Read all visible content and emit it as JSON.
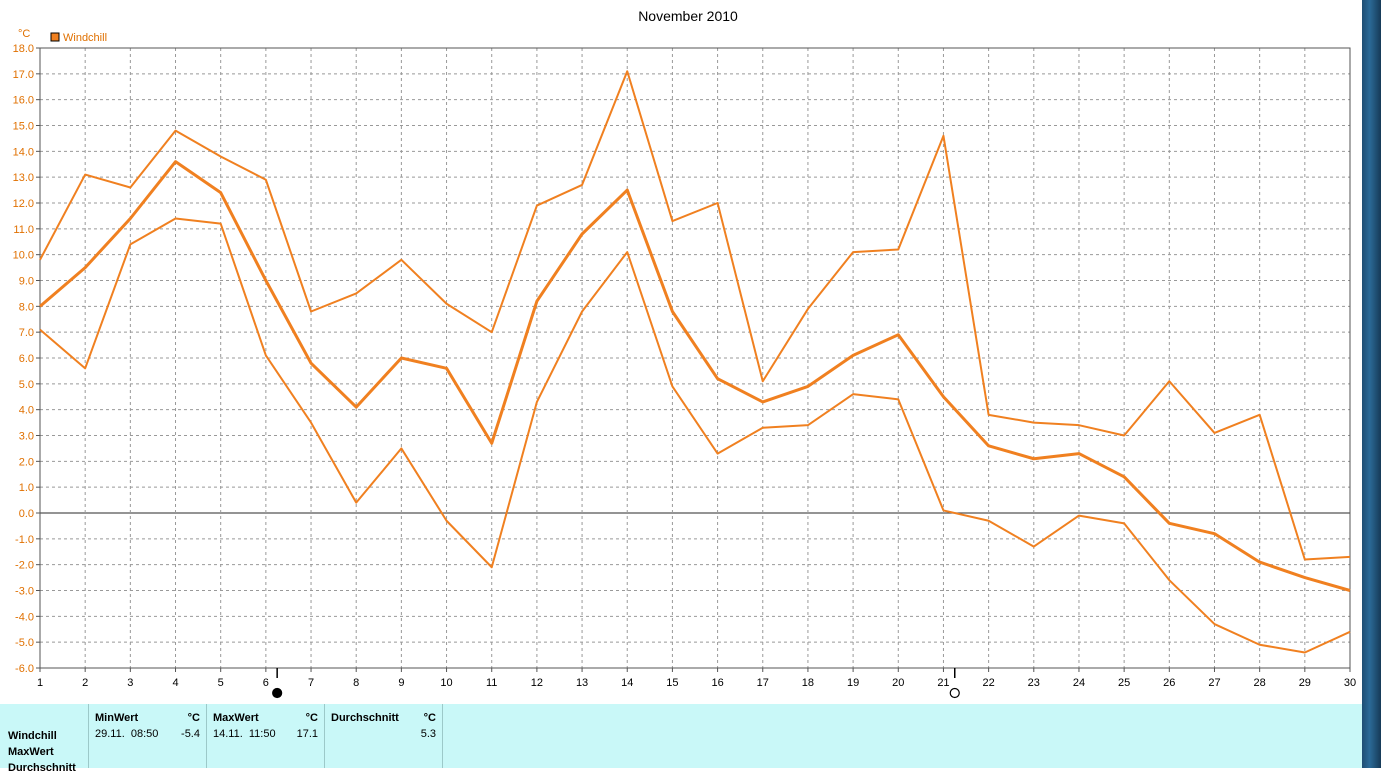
{
  "colors": {
    "line": "#f08020",
    "grid": "#999999",
    "axis": "#555555",
    "text": "#000000",
    "accent": "#e07000"
  },
  "chart_data": {
    "type": "line",
    "title": "November 2010",
    "ylabel": "°C",
    "legend": {
      "label": "Windchill",
      "placement": "top-left"
    },
    "xlim": [
      1,
      30
    ],
    "ylim": [
      -6,
      18
    ],
    "grid": true,
    "x": [
      1,
      2,
      3,
      4,
      5,
      6,
      7,
      8,
      9,
      10,
      11,
      12,
      13,
      14,
      15,
      16,
      17,
      18,
      19,
      20,
      21,
      22,
      23,
      24,
      25,
      26,
      27,
      28,
      29,
      30
    ],
    "x_tick_labels": [
      "1",
      "2",
      "3",
      "4",
      "5",
      "6",
      "7",
      "8",
      "9",
      "10",
      "11",
      "12",
      "13",
      "14",
      "15",
      "16",
      "17",
      "18",
      "19",
      "20",
      "21",
      "22",
      "23",
      "24",
      "25",
      "26",
      "27",
      "28",
      "29",
      "30"
    ],
    "y_tick_labels": [
      "18.0",
      "17.0",
      "16.0",
      "15.0",
      "14.0",
      "13.0",
      "12.0",
      "11.0",
      "10.0",
      "9.0",
      "8.0",
      "7.0",
      "6.0",
      "5.0",
      "4.0",
      "3.0",
      "2.0",
      "1.0",
      "0.0",
      "-1.0",
      "-2.0",
      "-3.0",
      "-4.0",
      "-5.0",
      "-6.0"
    ],
    "series": [
      {
        "role": "max",
        "values": [
          9.8,
          13.1,
          12.6,
          14.8,
          13.8,
          12.9,
          7.8,
          8.5,
          9.8,
          8.1,
          7.0,
          11.9,
          12.7,
          17.1,
          11.3,
          12.0,
          5.1,
          7.9,
          10.1,
          10.2,
          14.6,
          3.8,
          3.5,
          3.4,
          3.0,
          5.1,
          3.1,
          3.8,
          -1.8,
          -1.7
        ]
      },
      {
        "role": "avg",
        "values": [
          8.0,
          9.5,
          11.4,
          13.6,
          12.4,
          9.0,
          5.8,
          4.1,
          6.0,
          5.6,
          2.7,
          8.2,
          10.8,
          12.5,
          7.8,
          5.2,
          4.3,
          4.9,
          6.1,
          6.9,
          4.5,
          2.6,
          2.1,
          2.3,
          1.4,
          -0.4,
          -0.8,
          -1.9,
          -2.5,
          -3.0
        ]
      },
      {
        "role": "min",
        "values": [
          7.1,
          5.6,
          10.4,
          11.4,
          11.2,
          6.1,
          3.5,
          0.4,
          2.5,
          -0.3,
          -2.1,
          4.3,
          7.8,
          10.1,
          4.9,
          2.3,
          3.3,
          3.4,
          4.6,
          4.4,
          0.1,
          -0.3,
          -1.3,
          -0.1,
          -0.4,
          -2.6,
          -4.3,
          -5.1,
          -5.4,
          -4.6
        ]
      }
    ],
    "moon_markers": [
      {
        "day": 6,
        "phase": "new-moon"
      },
      {
        "day": 21,
        "phase": "full-moon"
      }
    ]
  },
  "stats": {
    "row_labels": [
      "Windchill",
      "MaxWert",
      "Durchschnitt"
    ],
    "min": {
      "header": "MinWert",
      "unit": "°C",
      "when": "29.11.  08:50",
      "value": "-5.4"
    },
    "max": {
      "header": "MaxWert",
      "unit": "°C",
      "when": "14.11.  11:50",
      "value": "17.1"
    },
    "avg": {
      "header": "Durchschnitt",
      "unit": "°C",
      "value": "5.3"
    }
  }
}
